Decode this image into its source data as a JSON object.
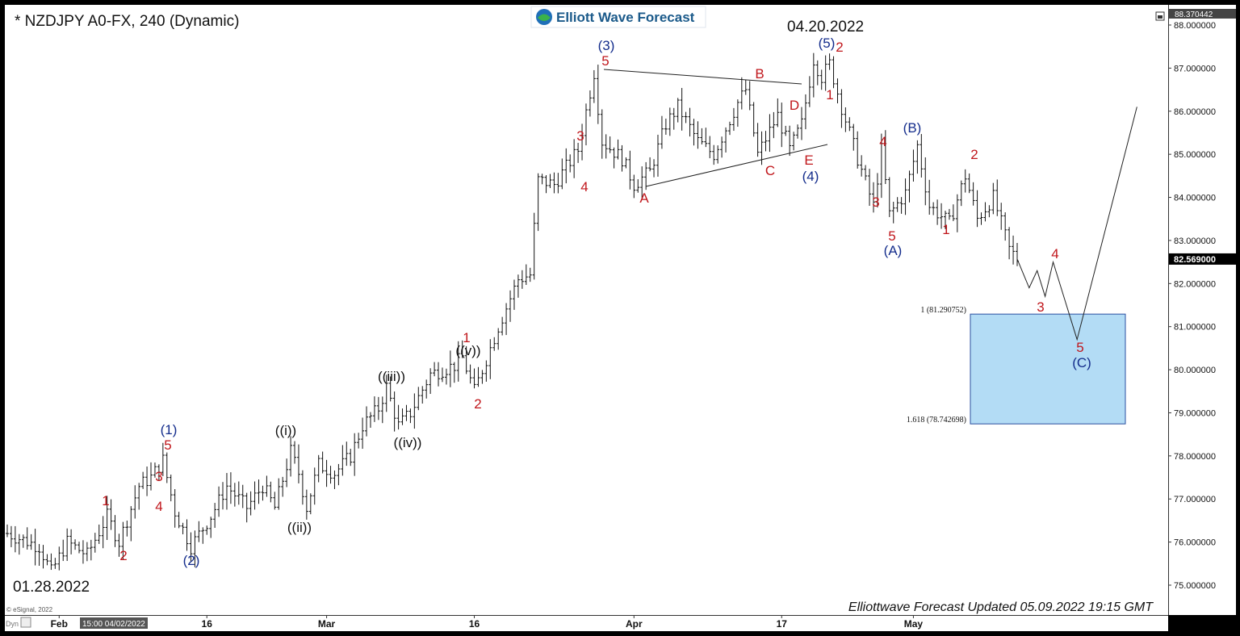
{
  "title": "* NZDJPY A0-FX, 240 (Dynamic)",
  "logo_text": "Elliott Wave Forecast",
  "start_date_label": "01.28.2022",
  "peak_date_label": "04.20.2022",
  "footer": "Elliottwave Forecast Updated 05.09.2022 19:15 GMT",
  "esignal": "© eSignal, 2022",
  "dyn_label": "Dyn",
  "crosshair_time": "15:00 04/02/2022",
  "last_price": "82.569000",
  "top_price": "88.370442",
  "colors": {
    "red": "#c0161b",
    "blue": "#142d8c",
    "box": "#b3dcf5",
    "box_border": "#2a4fa0",
    "bars": "#111111"
  },
  "fib_box": {
    "upper_label": "1 (81.290752)",
    "lower_label": "1.618 (78.742698)",
    "upper": 81.290752,
    "lower": 78.742698
  },
  "chart_data": {
    "type": "bar",
    "ylim": [
      74.6,
      88.55
    ],
    "y_ticks": [
      "75.000000",
      "76.000000",
      "77.000000",
      "78.000000",
      "79.000000",
      "80.000000",
      "81.000000",
      "82.000000",
      "83.000000",
      "84.000000",
      "85.000000",
      "86.000000",
      "87.000000",
      "88.000000"
    ],
    "x_ticks": [
      {
        "label": "Feb",
        "bar": 13
      },
      {
        "label": "16",
        "bar": 50
      },
      {
        "label": "Mar",
        "bar": 80
      },
      {
        "label": "16",
        "bar": 117
      },
      {
        "label": "Apr",
        "bar": 157
      },
      {
        "label": "17",
        "bar": 194
      },
      {
        "label": "May",
        "bar": 227
      }
    ],
    "bar_count": 283,
    "anchors": [
      [
        0,
        76.2
      ],
      [
        8,
        75.9
      ],
      [
        11,
        75.3
      ],
      [
        15,
        76.0
      ],
      [
        20,
        75.7
      ],
      [
        25,
        76.6
      ],
      [
        28,
        76.0
      ],
      [
        33,
        77.3
      ],
      [
        36,
        77.5
      ],
      [
        39,
        77.9
      ],
      [
        42,
        76.7
      ],
      [
        46,
        75.9
      ],
      [
        51,
        76.6
      ],
      [
        55,
        77.3
      ],
      [
        60,
        76.8
      ],
      [
        64,
        77.3
      ],
      [
        67,
        76.8
      ],
      [
        71,
        78.1
      ],
      [
        73,
        77.6
      ],
      [
        75,
        76.8
      ],
      [
        78,
        77.8
      ],
      [
        82,
        77.6
      ],
      [
        86,
        78.0
      ],
      [
        89,
        78.7
      ],
      [
        93,
        79.1
      ],
      [
        95,
        79.6
      ],
      [
        98,
        78.7
      ],
      [
        101,
        79.0
      ],
      [
        106,
        79.9
      ],
      [
        112,
        80.1
      ],
      [
        114,
        80.3
      ],
      [
        117,
        79.5
      ],
      [
        119,
        80.0
      ],
      [
        123,
        81.0
      ],
      [
        128,
        82.1
      ],
      [
        131,
        82.2
      ],
      [
        133,
        84.4
      ],
      [
        137,
        84.3
      ],
      [
        140,
        84.7
      ],
      [
        143,
        85.1
      ],
      [
        147,
        86.9
      ],
      [
        149,
        85.3
      ],
      [
        154,
        84.9
      ],
      [
        157,
        84.3
      ],
      [
        161,
        84.6
      ],
      [
        165,
        85.7
      ],
      [
        168,
        86.1
      ],
      [
        173,
        85.3
      ],
      [
        177,
        85.0
      ],
      [
        183,
        86.2
      ],
      [
        185,
        86.5
      ],
      [
        188,
        85.0
      ],
      [
        193,
        85.9
      ],
      [
        196,
        85.1
      ],
      [
        199,
        85.7
      ],
      [
        202,
        87.2
      ],
      [
        204,
        86.8
      ],
      [
        206,
        87.1
      ],
      [
        209,
        86.1
      ],
      [
        213,
        84.9
      ],
      [
        217,
        83.8
      ],
      [
        219,
        85.1
      ],
      [
        221,
        83.6
      ],
      [
        225,
        84.1
      ],
      [
        228,
        85.2
      ],
      [
        231,
        83.8
      ],
      [
        236,
        83.4
      ],
      [
        240,
        84.5
      ],
      [
        243,
        83.5
      ],
      [
        247,
        84.0
      ],
      [
        251,
        82.8
      ],
      [
        253,
        82.569
      ]
    ],
    "projection": [
      [
        82.569,
        253
      ],
      [
        81.9,
        256
      ],
      [
        82.3,
        258
      ],
      [
        81.7,
        260
      ],
      [
        82.5,
        262
      ],
      [
        80.7,
        268
      ],
      [
        86.1,
        283
      ]
    ],
    "waves": [
      {
        "t": "1",
        "c": "red",
        "x": 131,
        "y": 620
      },
      {
        "t": "2",
        "c": "red",
        "x": 153,
        "y": 688
      },
      {
        "t": "3",
        "c": "red",
        "x": 197,
        "y": 590
      },
      {
        "t": "4",
        "c": "red",
        "x": 197,
        "y": 627
      },
      {
        "t": "5",
        "c": "red",
        "x": 208,
        "y": 551
      },
      {
        "t": "(1)",
        "c": "blue",
        "x": 209,
        "y": 532
      },
      {
        "t": "(2)",
        "c": "blue",
        "x": 237,
        "y": 694
      },
      {
        "t": "((i))",
        "c": "black",
        "x": 354,
        "y": 533
      },
      {
        "t": "((ii))",
        "c": "black",
        "x": 371,
        "y": 653
      },
      {
        "t": "((iii))",
        "c": "black",
        "x": 485,
        "y": 466
      },
      {
        "t": "((iv))",
        "c": "black",
        "x": 505,
        "y": 548
      },
      {
        "t": "1",
        "c": "red",
        "x": 578,
        "y": 418
      },
      {
        "t": "((v))",
        "c": "black",
        "x": 580,
        "y": 434
      },
      {
        "t": "2",
        "c": "red",
        "x": 592,
        "y": 500
      },
      {
        "t": "3",
        "c": "red",
        "x": 719,
        "y": 168
      },
      {
        "t": "4",
        "c": "red",
        "x": 724,
        "y": 231
      },
      {
        "t": "5",
        "c": "red",
        "x": 750,
        "y": 75
      },
      {
        "t": "(3)",
        "c": "blue",
        "x": 751,
        "y": 56
      },
      {
        "t": "A",
        "c": "red",
        "x": 798,
        "y": 245
      },
      {
        "t": "B",
        "c": "red",
        "x": 941,
        "y": 91
      },
      {
        "t": "C",
        "c": "red",
        "x": 954,
        "y": 211
      },
      {
        "t": "D",
        "c": "red",
        "x": 984,
        "y": 130
      },
      {
        "t": "E",
        "c": "red",
        "x": 1002,
        "y": 198
      },
      {
        "t": "(4)",
        "c": "blue",
        "x": 1004,
        "y": 218
      },
      {
        "t": "(5)",
        "c": "blue",
        "x": 1024,
        "y": 53
      },
      {
        "t": "2",
        "c": "red",
        "x": 1040,
        "y": 58
      },
      {
        "t": "1",
        "c": "red",
        "x": 1028,
        "y": 117
      },
      {
        "t": "4",
        "c": "red",
        "x": 1094,
        "y": 175
      },
      {
        "t": "3",
        "c": "red",
        "x": 1085,
        "y": 250
      },
      {
        "t": "5",
        "c": "red",
        "x": 1105,
        "y": 292
      },
      {
        "t": "(A)",
        "c": "blue",
        "x": 1106,
        "y": 310
      },
      {
        "t": "(B)",
        "c": "blue",
        "x": 1130,
        "y": 158
      },
      {
        "t": "2",
        "c": "red",
        "x": 1207,
        "y": 191
      },
      {
        "t": "1",
        "c": "red",
        "x": 1172,
        "y": 284
      },
      {
        "t": "4",
        "c": "red",
        "x": 1307,
        "y": 314
      },
      {
        "t": "3",
        "c": "red",
        "x": 1289,
        "y": 380
      },
      {
        "t": "5",
        "c": "red",
        "x": 1338,
        "y": 430
      },
      {
        "t": "(C)",
        "c": "blue",
        "x": 1340,
        "y": 449
      }
    ]
  }
}
